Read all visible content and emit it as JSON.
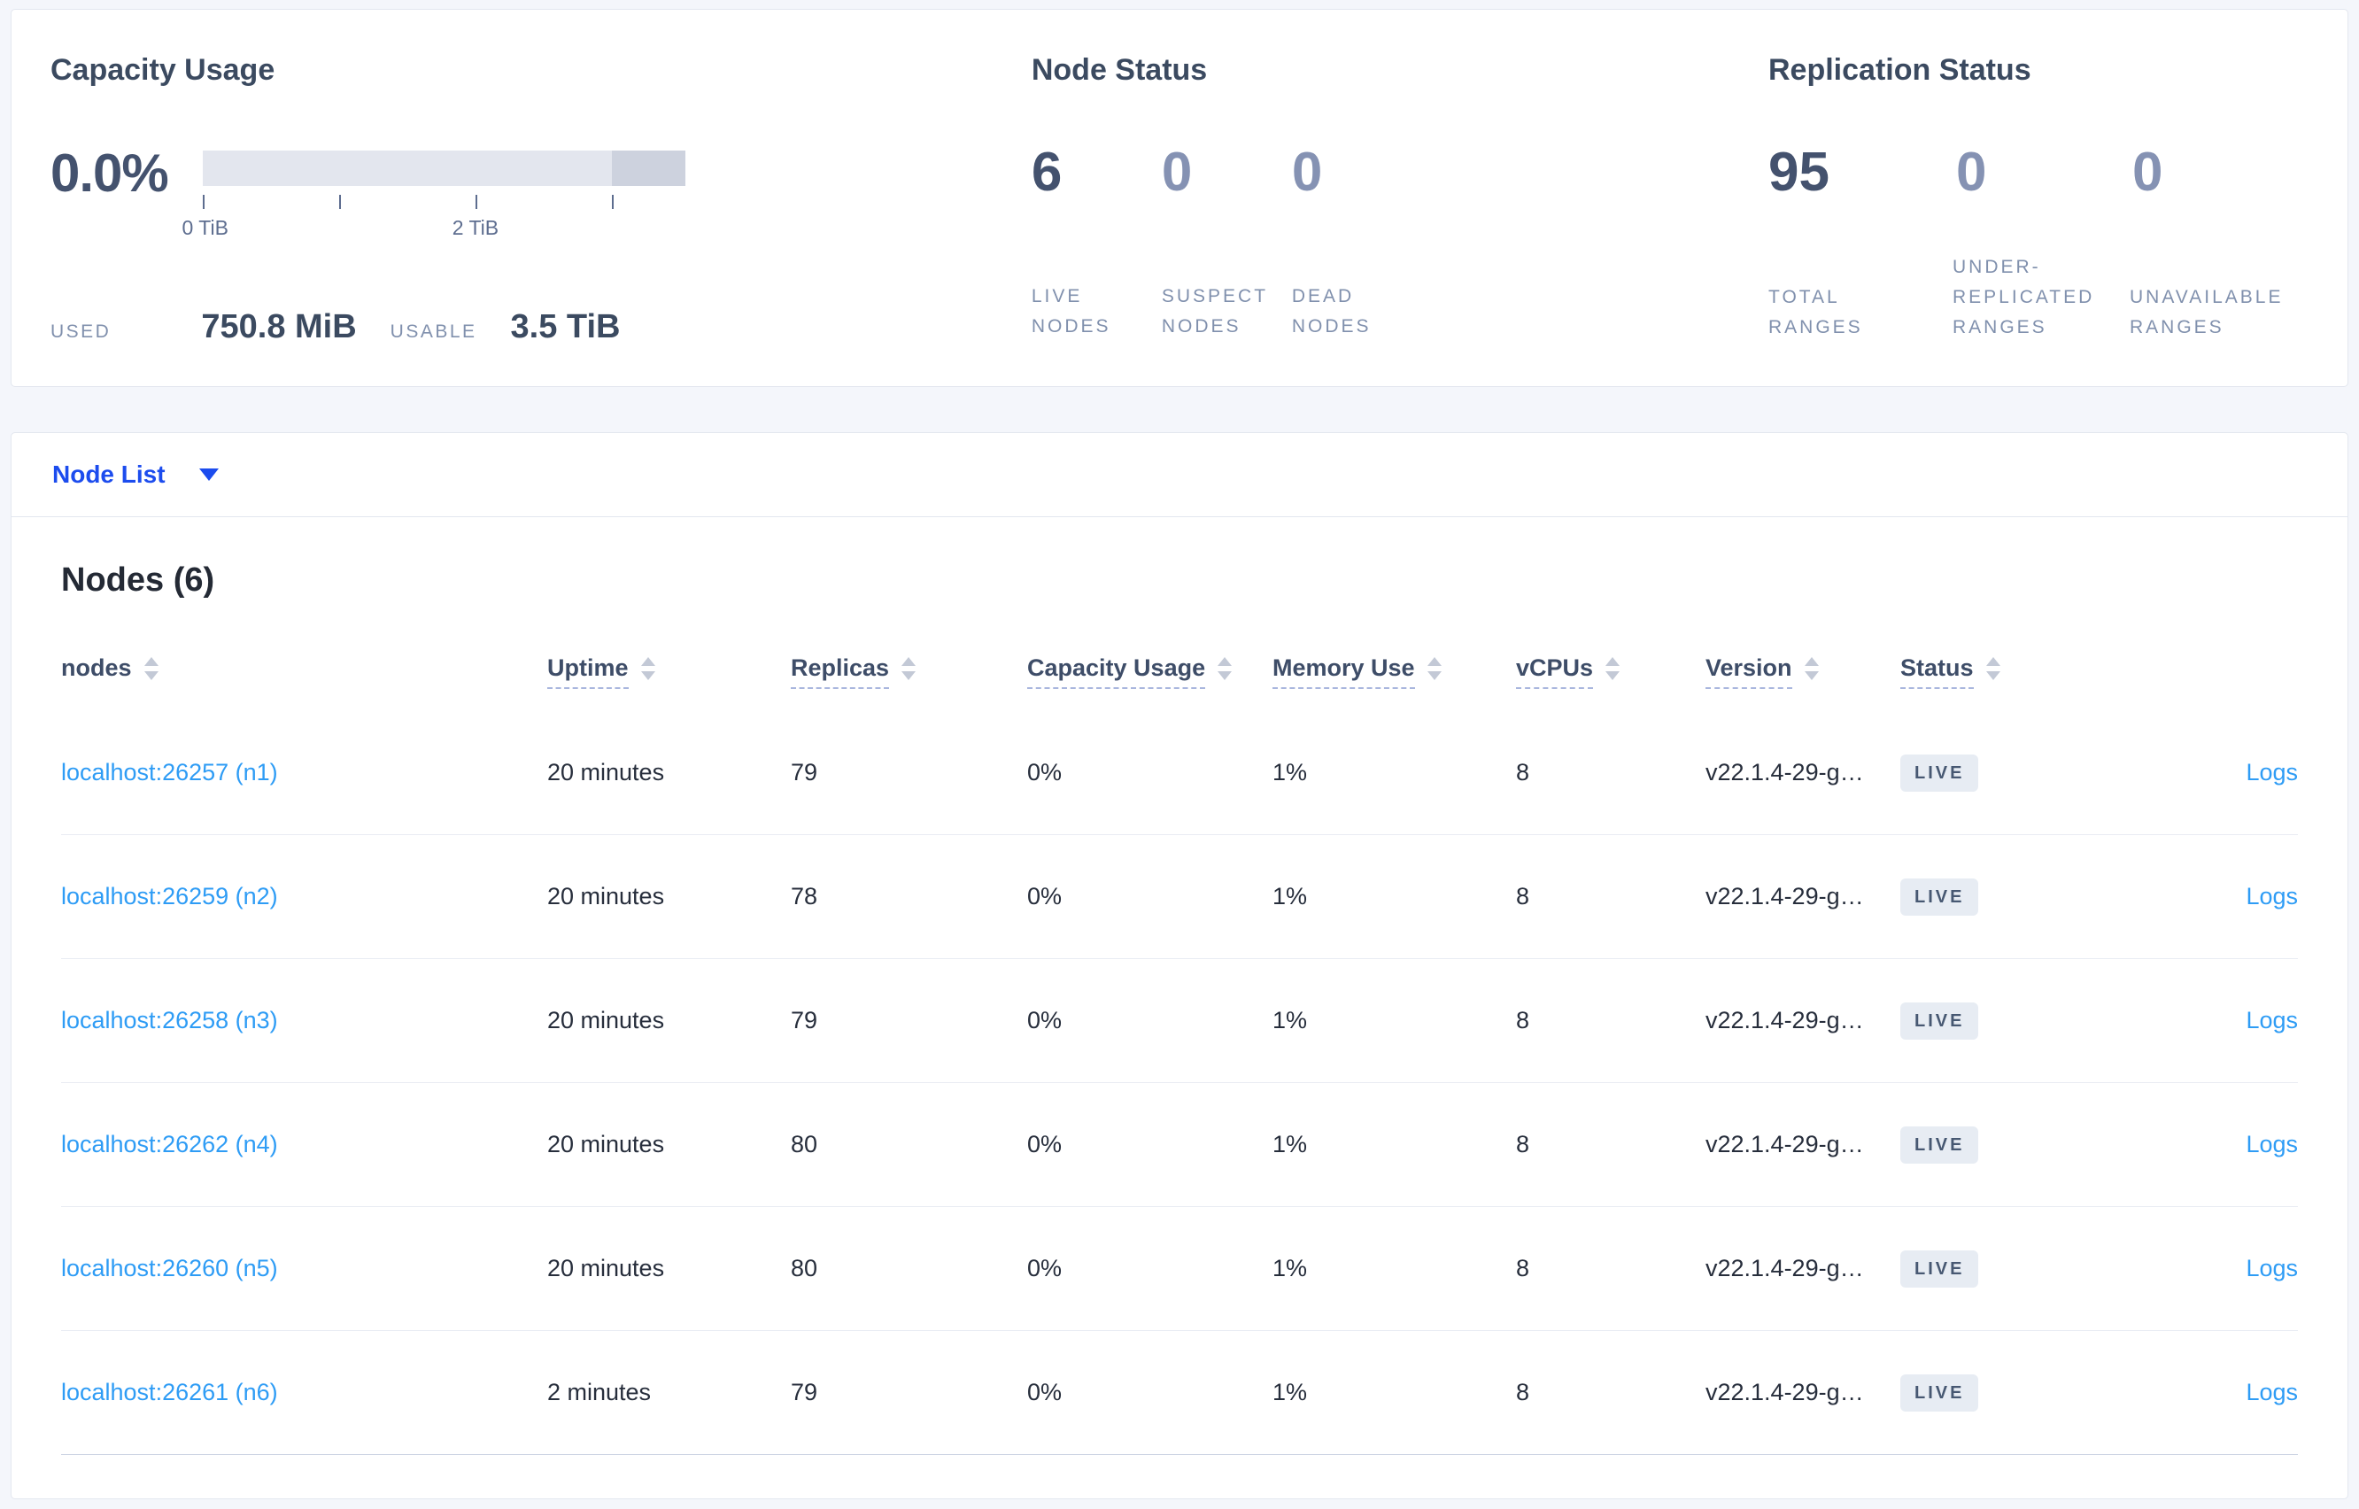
{
  "summary": {
    "capacity": {
      "title": "Capacity Usage",
      "percent": "0.0%",
      "tick_labels": [
        "0 TiB",
        "2 TiB"
      ],
      "bar": {
        "segments": [
          {
            "name": "usable",
            "from_pct": 0,
            "to_pct": 84.8,
            "color": "#e3e6ee"
          },
          {
            "name": "other",
            "from_pct": 84.8,
            "to_pct": 100,
            "color": "#cdd2de"
          }
        ]
      },
      "used_label": "USED",
      "used_value": "750.8 MiB",
      "usable_label": "USABLE",
      "usable_value": "3.5 TiB"
    },
    "node_status": {
      "title": "Node Status",
      "stats": [
        {
          "value": "6",
          "label": "LIVE NODES"
        },
        {
          "value": "0",
          "label": "SUSPECT NODES"
        },
        {
          "value": "0",
          "label": "DEAD NODES"
        }
      ]
    },
    "replication": {
      "title": "Replication Status",
      "stats": [
        {
          "value": "95",
          "label": "TOTAL RANGES"
        },
        {
          "value": "0",
          "label": "UNDER-REPLICATED RANGES"
        },
        {
          "value": "0",
          "label": "UNAVAILABLE RANGES"
        }
      ]
    }
  },
  "node_list": {
    "dropdown_label": "Node List",
    "heading": "Nodes (6)",
    "columns": [
      {
        "key": "nodes",
        "label": "nodes",
        "dashed": false
      },
      {
        "key": "uptime",
        "label": "Uptime",
        "dashed": true
      },
      {
        "key": "replicas",
        "label": "Replicas",
        "dashed": true
      },
      {
        "key": "capacity",
        "label": "Capacity Usage",
        "dashed": true
      },
      {
        "key": "memory",
        "label": "Memory Use",
        "dashed": true
      },
      {
        "key": "vcpus",
        "label": "vCPUs",
        "dashed": true
      },
      {
        "key": "version",
        "label": "Version",
        "dashed": true
      },
      {
        "key": "status",
        "label": "Status",
        "dashed": true
      },
      {
        "key": "logs",
        "label": "",
        "dashed": false
      }
    ],
    "rows": [
      {
        "address": "localhost:26257 (n1)",
        "uptime": "20 minutes",
        "replicas": "79",
        "capacity": "0%",
        "memory": "1%",
        "vcpus": "8",
        "version": "v22.1.4-29-g…",
        "status": "LIVE",
        "logs": "Logs"
      },
      {
        "address": "localhost:26259 (n2)",
        "uptime": "20 minutes",
        "replicas": "78",
        "capacity": "0%",
        "memory": "1%",
        "vcpus": "8",
        "version": "v22.1.4-29-g…",
        "status": "LIVE",
        "logs": "Logs"
      },
      {
        "address": "localhost:26258 (n3)",
        "uptime": "20 minutes",
        "replicas": "79",
        "capacity": "0%",
        "memory": "1%",
        "vcpus": "8",
        "version": "v22.1.4-29-g…",
        "status": "LIVE",
        "logs": "Logs"
      },
      {
        "address": "localhost:26262 (n4)",
        "uptime": "20 minutes",
        "replicas": "80",
        "capacity": "0%",
        "memory": "1%",
        "vcpus": "8",
        "version": "v22.1.4-29-g…",
        "status": "LIVE",
        "logs": "Logs"
      },
      {
        "address": "localhost:26260 (n5)",
        "uptime": "20 minutes",
        "replicas": "80",
        "capacity": "0%",
        "memory": "1%",
        "vcpus": "8",
        "version": "v22.1.4-29-g…",
        "status": "LIVE",
        "logs": "Logs"
      },
      {
        "address": "localhost:26261 (n6)",
        "uptime": "2 minutes",
        "replicas": "79",
        "capacity": "0%",
        "memory": "1%",
        "vcpus": "8",
        "version": "v22.1.4-29-g…",
        "status": "LIVE",
        "logs": "Logs"
      }
    ]
  },
  "colors": {
    "page_background": "#f4f6fb",
    "card_border": "#e3e7ef",
    "primary_blue": "#1c4cee",
    "link_blue": "#2e9cf5",
    "number_dark": "#44526e",
    "number_dim": "#8592b3",
    "label_gray": "#8090ad",
    "badge_background": "#e7ecf3",
    "badge_text": "#475872",
    "bar_light": "#e3e6ee",
    "bar_dark": "#cdd2de"
  }
}
